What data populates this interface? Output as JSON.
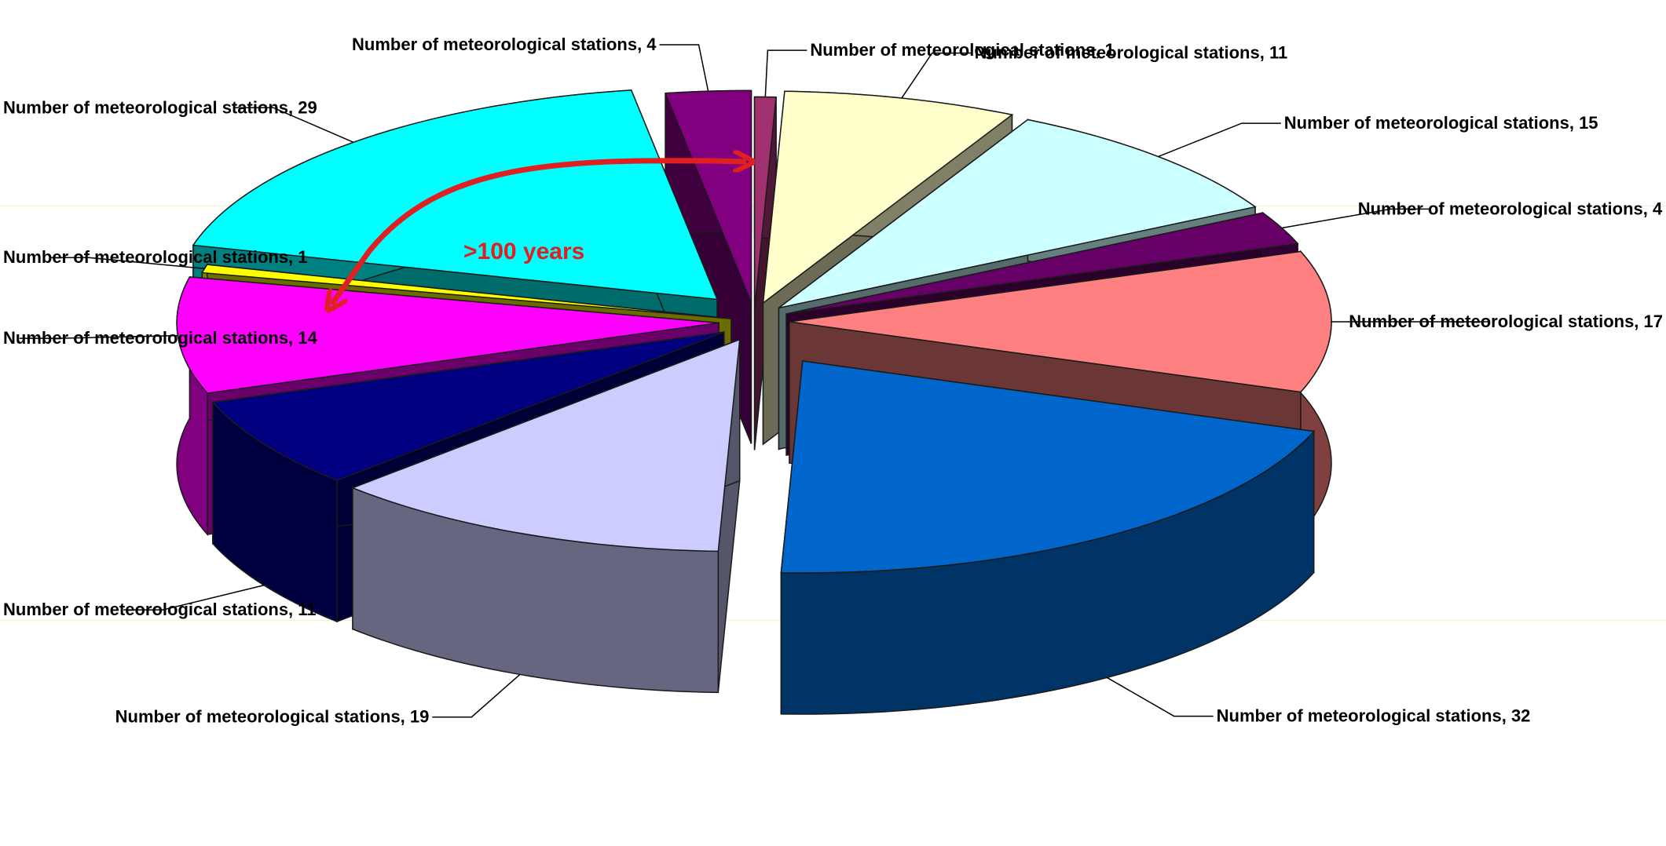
{
  "chart_data": {
    "type": "pie",
    "style": "3d-exploded",
    "legend": "none",
    "grid": false,
    "slices": [
      {
        "label": "Number of meteorological stations",
        "value": 1,
        "color": "#a0306e"
      },
      {
        "label": "Number of meteorological stations",
        "value": 11,
        "color": "#ffffcc"
      },
      {
        "label": "Number of meteorological stations",
        "value": 15,
        "color": "#ccffff"
      },
      {
        "label": "Number of meteorological stations",
        "value": 4,
        "color": "#660066"
      },
      {
        "label": "Number of meteorological stations",
        "value": 17,
        "color": "#ff8080"
      },
      {
        "label": "Number of meteorological stations",
        "value": 32,
        "color": "#0066cc"
      },
      {
        "label": "Number of meteorological stations",
        "value": 19,
        "color": "#ccccff"
      },
      {
        "label": "Number of meteorological stations",
        "value": 11,
        "color": "#000080"
      },
      {
        "label": "Number of meteorological stations",
        "value": 14,
        "color": "#ff00ff"
      },
      {
        "label": "Number of meteorological stations",
        "value": 1,
        "color": "#ffff00"
      },
      {
        "label": "Number of meteorological stations",
        "value": 29,
        "color": "#00ffff"
      },
      {
        "label": "Number of meteorological stations",
        "value": 4,
        "color": "#800080"
      }
    ],
    "annotations": [
      {
        "text": ">100 years",
        "color": "#e02020"
      }
    ]
  }
}
